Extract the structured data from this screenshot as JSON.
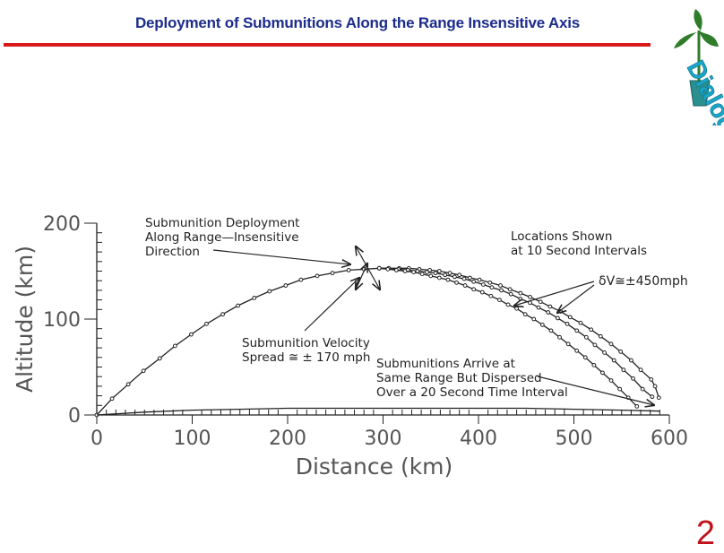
{
  "slide": {
    "title": "Deployment of Submunitions Along the Range Insensitive Axis",
    "page_number": "2",
    "logo_text": "Dialogue",
    "colors": {
      "title": "#1c2c8c",
      "rule": "#d8191c",
      "page_number": "#c0121b",
      "logo_text": "#19a6c8",
      "logo_plant": "#2f7d2a",
      "ink": "#222222"
    }
  },
  "chart_data": {
    "type": "line",
    "xlabel": "Distance (km)",
    "ylabel": "Altitude (km)",
    "xlim": [
      0,
      600
    ],
    "ylim": [
      0,
      200
    ],
    "x_ticks": [
      0,
      100,
      200,
      300,
      400,
      500,
      600
    ],
    "y_ticks": [
      0,
      100,
      200
    ],
    "grid": false,
    "marker_interval_s": 10,
    "annotations": {
      "deployment": [
        "Submunition Deployment",
        "Along Range—Insensitive",
        "Direction"
      ],
      "locations": [
        "Locations Shown",
        "at 10 Second Intervals"
      ],
      "dv": "δV≅±450mph",
      "velocity": [
        "Submunition Velocity",
        "Spread ≅ ± 170 mph"
      ],
      "arrive": [
        "Submunitions Arrive at",
        "Same Range But Dispersed",
        "Over a 20 Second Time Interval"
      ]
    },
    "series": [
      {
        "role": "main-trajectory",
        "points": [
          [
            0,
            0
          ],
          [
            16,
            17
          ],
          [
            33,
            32
          ],
          [
            49,
            46
          ],
          [
            66,
            59
          ],
          [
            82,
            72
          ],
          [
            99,
            84
          ],
          [
            115,
            95
          ],
          [
            132,
            105
          ],
          [
            148,
            114
          ],
          [
            165,
            122
          ],
          [
            181,
            129
          ],
          [
            198,
            135
          ],
          [
            214,
            141
          ],
          [
            231,
            145
          ],
          [
            247,
            148
          ],
          [
            264,
            151
          ],
          [
            280,
            152
          ],
          [
            296,
            153
          ]
        ]
      },
      {
        "role": "submunition-1",
        "points": [
          [
            296,
            153
          ],
          [
            306,
            153
          ],
          [
            317,
            153
          ],
          [
            327,
            153
          ],
          [
            338,
            152
          ],
          [
            349,
            151
          ],
          [
            359,
            150
          ],
          [
            370,
            148
          ],
          [
            380,
            146
          ],
          [
            391,
            143
          ],
          [
            401,
            141
          ],
          [
            412,
            138
          ],
          [
            423,
            135
          ],
          [
            433,
            131
          ],
          [
            444,
            127
          ],
          [
            454,
            123
          ],
          [
            465,
            118
          ],
          [
            475,
            113
          ],
          [
            486,
            108
          ],
          [
            496,
            102
          ],
          [
            507,
            96
          ],
          [
            518,
            89
          ],
          [
            528,
            82
          ],
          [
            539,
            74
          ],
          [
            549,
            66
          ],
          [
            560,
            57
          ],
          [
            570,
            47
          ],
          [
            581,
            37
          ],
          [
            585,
            30
          ],
          [
            589,
            18
          ]
        ]
      },
      {
        "role": "submunition-2",
        "points": [
          [
            296,
            153
          ],
          [
            306,
            153
          ],
          [
            316,
            152
          ],
          [
            326,
            151
          ],
          [
            336,
            150
          ],
          [
            346,
            149
          ],
          [
            355,
            148
          ],
          [
            365,
            146
          ],
          [
            375,
            144
          ],
          [
            385,
            142
          ],
          [
            395,
            139
          ],
          [
            405,
            136
          ],
          [
            414,
            133
          ],
          [
            424,
            130
          ],
          [
            434,
            126
          ],
          [
            444,
            121
          ],
          [
            454,
            117
          ],
          [
            463,
            112
          ],
          [
            473,
            107
          ],
          [
            483,
            101
          ],
          [
            493,
            95
          ],
          [
            503,
            88
          ],
          [
            513,
            81
          ],
          [
            522,
            73
          ],
          [
            532,
            65
          ],
          [
            542,
            57
          ],
          [
            552,
            47
          ],
          [
            562,
            38
          ],
          [
            572,
            27
          ],
          [
            582,
            19
          ]
        ]
      },
      {
        "role": "submunition-3",
        "points": [
          [
            296,
            153
          ],
          [
            305,
            152
          ],
          [
            314,
            151
          ],
          [
            323,
            150
          ],
          [
            332,
            149
          ],
          [
            341,
            147
          ],
          [
            350,
            145
          ],
          [
            359,
            143
          ],
          [
            368,
            141
          ],
          [
            377,
            138
          ],
          [
            386,
            135
          ],
          [
            395,
            131
          ],
          [
            404,
            128
          ],
          [
            413,
            124
          ],
          [
            422,
            120
          ],
          [
            431,
            115
          ],
          [
            440,
            111
          ],
          [
            449,
            105
          ],
          [
            458,
            100
          ],
          [
            467,
            94
          ],
          [
            476,
            88
          ],
          [
            485,
            81
          ],
          [
            494,
            74
          ],
          [
            503,
            67
          ],
          [
            512,
            60
          ],
          [
            521,
            52
          ],
          [
            530,
            44
          ],
          [
            539,
            36
          ],
          [
            548,
            27
          ],
          [
            557,
            18
          ],
          [
            566,
            9
          ]
        ]
      },
      {
        "role": "low-trajectory",
        "points": [
          [
            0,
            0
          ],
          [
            50,
            3
          ],
          [
            100,
            5
          ],
          [
            150,
            6
          ],
          [
            200,
            7
          ],
          [
            250,
            7
          ],
          [
            300,
            7
          ],
          [
            350,
            7
          ],
          [
            400,
            7
          ],
          [
            450,
            7
          ],
          [
            500,
            6
          ],
          [
            550,
            5
          ],
          [
            590,
            4
          ]
        ]
      }
    ]
  }
}
